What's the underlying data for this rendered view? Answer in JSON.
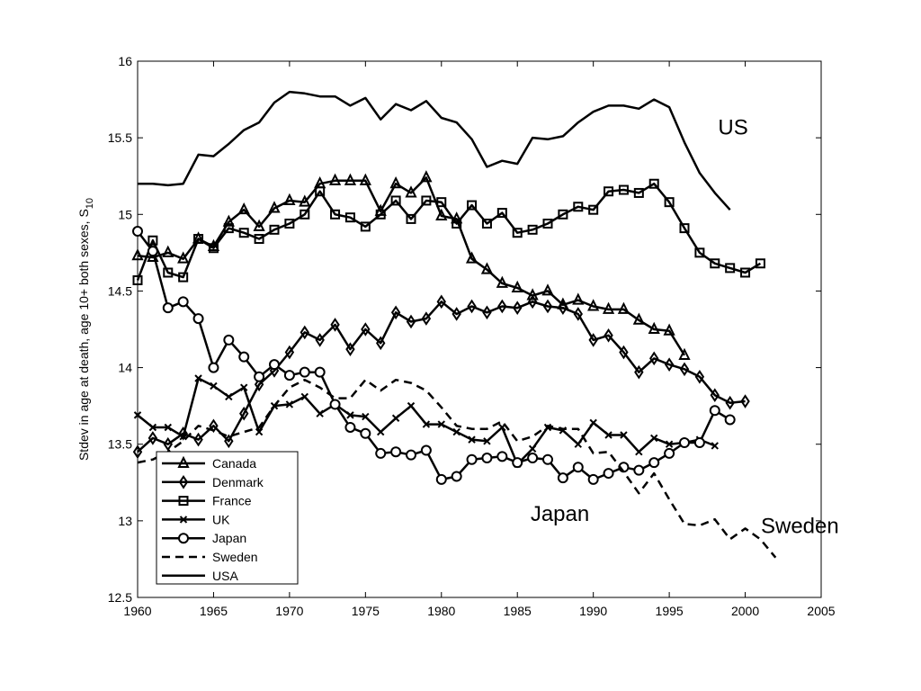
{
  "chart_data": {
    "type": "line",
    "title": "",
    "xlabel": "",
    "ylabel": "Stdev in age at death, age 10+ both sexes, S",
    "ylabel_sub": "10",
    "xlim": [
      1960,
      2005
    ],
    "ylim": [
      12.5,
      16
    ],
    "xticks": [
      "1960",
      "1965",
      "1970",
      "1975",
      "1980",
      "1985",
      "1990",
      "1995",
      "2000",
      "2005"
    ],
    "yticks": [
      "12.5",
      "13",
      "13.5",
      "14",
      "14.5",
      "15",
      "15.5",
      "16"
    ],
    "grid": false,
    "legend_position": "bottom-left",
    "annotations": [
      {
        "text": "US",
        "x": 1999.2,
        "y": 15.52
      },
      {
        "text": "Japan",
        "x": 1987.8,
        "y": 13.0
      },
      {
        "text": "Sweden",
        "x": 2003.6,
        "y": 12.92
      }
    ],
    "series": [
      {
        "name": "Canada",
        "marker": "triangle",
        "dash": "solid",
        "x": [
          1960,
          1961,
          1962,
          1963,
          1964,
          1965,
          1966,
          1967,
          1968,
          1969,
          1970,
          1971,
          1972,
          1973,
          1974,
          1975,
          1976,
          1977,
          1978,
          1979,
          1980,
          1981,
          1982,
          1983,
          1984,
          1985,
          1986,
          1987,
          1988,
          1989,
          1990,
          1991,
          1992,
          1993,
          1994,
          1995,
          1996
        ],
        "y": [
          14.73,
          14.72,
          14.75,
          14.71,
          14.84,
          14.79,
          14.95,
          15.03,
          14.92,
          15.04,
          15.09,
          15.08,
          15.2,
          15.22,
          15.22,
          15.22,
          15.02,
          15.2,
          15.14,
          15.24,
          14.99,
          14.97,
          14.71,
          14.64,
          14.55,
          14.52,
          14.47,
          14.5,
          14.41,
          14.44,
          14.4,
          14.38,
          14.38,
          14.31,
          14.25,
          14.24,
          14.08
        ]
      },
      {
        "name": "Denmark",
        "marker": "diamond",
        "dash": "solid",
        "x": [
          1960,
          1961,
          1962,
          1963,
          1964,
          1965,
          1966,
          1967,
          1968,
          1969,
          1970,
          1971,
          1972,
          1973,
          1974,
          1975,
          1976,
          1977,
          1978,
          1979,
          1980,
          1981,
          1982,
          1983,
          1984,
          1985,
          1986,
          1987,
          1988,
          1989,
          1990,
          1991,
          1992,
          1993,
          1994,
          1995,
          1996,
          1997,
          1998,
          1999,
          2000
        ],
        "y": [
          13.45,
          13.54,
          13.5,
          13.57,
          13.53,
          13.62,
          13.52,
          13.7,
          13.89,
          13.98,
          14.1,
          14.23,
          14.18,
          14.28,
          14.12,
          14.25,
          14.16,
          14.36,
          14.3,
          14.32,
          14.43,
          14.35,
          14.4,
          14.36,
          14.4,
          14.39,
          14.43,
          14.4,
          14.39,
          14.35,
          14.18,
          14.21,
          14.1,
          13.97,
          14.06,
          14.02,
          13.99,
          13.94,
          13.82,
          13.77,
          13.78
        ]
      },
      {
        "name": "France",
        "marker": "square",
        "dash": "solid",
        "x": [
          1960,
          1961,
          1962,
          1963,
          1964,
          1965,
          1966,
          1967,
          1968,
          1969,
          1970,
          1971,
          1972,
          1973,
          1974,
          1975,
          1976,
          1977,
          1978,
          1979,
          1980,
          1981,
          1982,
          1983,
          1984,
          1985,
          1986,
          1987,
          1988,
          1989,
          1990,
          1991,
          1992,
          1993,
          1994,
          1995,
          1996,
          1997,
          1998,
          1999,
          2000,
          2001
        ],
        "y": [
          14.57,
          14.83,
          14.62,
          14.59,
          14.84,
          14.78,
          14.91,
          14.88,
          14.84,
          14.9,
          14.94,
          15.0,
          15.15,
          15.0,
          14.98,
          14.92,
          15.0,
          15.09,
          14.97,
          15.09,
          15.08,
          14.94,
          15.06,
          14.94,
          15.01,
          14.88,
          14.9,
          14.94,
          15.0,
          15.05,
          15.03,
          15.15,
          15.16,
          15.14,
          15.2,
          15.08,
          14.91,
          14.75,
          14.68,
          14.65,
          14.62,
          14.68
        ]
      },
      {
        "name": "UK",
        "marker": "x",
        "dash": "solid",
        "x": [
          1960,
          1961,
          1962,
          1963,
          1964,
          1965,
          1966,
          1967,
          1968,
          1969,
          1970,
          1971,
          1972,
          1973,
          1974,
          1975,
          1976,
          1977,
          1978,
          1979,
          1980,
          1981,
          1982,
          1983,
          1984,
          1985,
          1986,
          1987,
          1988,
          1989,
          1990,
          1991,
          1992,
          1993,
          1994,
          1995,
          1996,
          1997,
          1998
        ],
        "y": [
          13.69,
          13.61,
          13.61,
          13.55,
          13.93,
          13.88,
          13.81,
          13.87,
          13.58,
          13.75,
          13.76,
          13.81,
          13.7,
          13.76,
          13.69,
          13.68,
          13.58,
          13.67,
          13.75,
          13.63,
          13.63,
          13.58,
          13.53,
          13.52,
          13.61,
          13.37,
          13.47,
          13.61,
          13.59,
          13.5,
          13.64,
          13.56,
          13.56,
          13.45,
          13.54,
          13.5,
          13.51,
          13.53,
          13.49
        ]
      },
      {
        "name": "Japan",
        "marker": "circle",
        "dash": "solid",
        "x": [
          1960,
          1961,
          1962,
          1963,
          1964,
          1965,
          1966,
          1967,
          1968,
          1969,
          1970,
          1971,
          1972,
          1973,
          1974,
          1975,
          1976,
          1977,
          1978,
          1979,
          1980,
          1981,
          1982,
          1983,
          1984,
          1985,
          1986,
          1987,
          1988,
          1989,
          1990,
          1991,
          1992,
          1993,
          1994,
          1995,
          1996,
          1997,
          1998,
          1999
        ],
        "y": [
          14.89,
          14.76,
          14.39,
          14.43,
          14.32,
          14.0,
          14.18,
          14.07,
          13.94,
          14.02,
          13.95,
          13.97,
          13.97,
          13.76,
          13.61,
          13.57,
          13.44,
          13.45,
          13.43,
          13.46,
          13.27,
          13.29,
          13.4,
          13.41,
          13.42,
          13.38,
          13.41,
          13.4,
          13.28,
          13.35,
          13.27,
          13.31,
          13.35,
          13.33,
          13.38,
          13.44,
          13.51,
          13.51,
          13.72,
          13.66
        ]
      },
      {
        "name": "Sweden",
        "marker": "none",
        "dash": "dashed",
        "x": [
          1960,
          1961,
          1962,
          1963,
          1964,
          1965,
          1966,
          1967,
          1968,
          1969,
          1970,
          1971,
          1972,
          1973,
          1974,
          1975,
          1976,
          1977,
          1978,
          1979,
          1980,
          1981,
          1982,
          1983,
          1984,
          1985,
          1986,
          1987,
          1988,
          1989,
          1990,
          1991,
          1992,
          1993,
          1994,
          1995,
          1996,
          1997,
          1998,
          1999,
          2000,
          2001,
          2002
        ],
        "y": [
          13.38,
          13.4,
          13.45,
          13.52,
          13.62,
          13.59,
          13.55,
          13.58,
          13.61,
          13.75,
          13.87,
          13.92,
          13.87,
          13.8,
          13.8,
          13.92,
          13.85,
          13.92,
          13.9,
          13.85,
          13.74,
          13.62,
          13.6,
          13.6,
          13.65,
          13.52,
          13.55,
          13.62,
          13.6,
          13.6,
          13.44,
          13.45,
          13.32,
          13.18,
          13.31,
          13.14,
          12.98,
          12.97,
          13.01,
          12.88,
          12.95,
          12.88,
          12.76
        ]
      },
      {
        "name": "USA",
        "marker": "none",
        "dash": "solid",
        "x": [
          1960,
          1961,
          1962,
          1963,
          1964,
          1965,
          1966,
          1967,
          1968,
          1969,
          1970,
          1971,
          1972,
          1973,
          1974,
          1975,
          1976,
          1977,
          1978,
          1979,
          1980,
          1981,
          1982,
          1983,
          1984,
          1985,
          1986,
          1987,
          1988,
          1989,
          1990,
          1991,
          1992,
          1993,
          1994,
          1995,
          1996,
          1997,
          1998,
          1999
        ],
        "y": [
          15.2,
          15.2,
          15.19,
          15.2,
          15.39,
          15.38,
          15.46,
          15.55,
          15.6,
          15.73,
          15.8,
          15.79,
          15.77,
          15.77,
          15.71,
          15.76,
          15.62,
          15.72,
          15.68,
          15.74,
          15.63,
          15.6,
          15.49,
          15.31,
          15.35,
          15.33,
          15.5,
          15.49,
          15.51,
          15.6,
          15.67,
          15.71,
          15.71,
          15.69,
          15.75,
          15.7,
          15.47,
          15.27,
          15.14,
          15.03
        ]
      }
    ]
  }
}
